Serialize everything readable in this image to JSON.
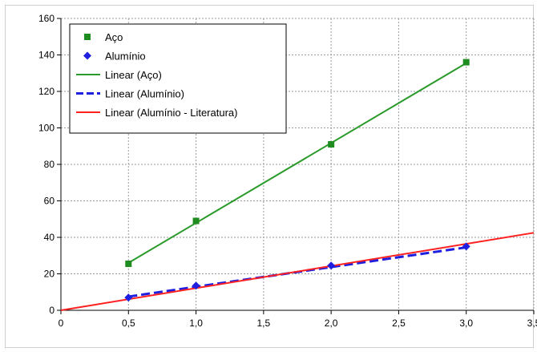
{
  "chart_data": {
    "type": "scatter",
    "xlim": [
      0,
      3.5
    ],
    "ylim": [
      0,
      160
    ],
    "x_ticks": [
      "0",
      "0,5",
      "1,0",
      "1,5",
      "2,0",
      "2,5",
      "3,0",
      "3,5"
    ],
    "x_tick_values": [
      0,
      0.5,
      1.0,
      1.5,
      2.0,
      2.5,
      3.0,
      3.5
    ],
    "y_ticks": [
      "0",
      "20",
      "40",
      "60",
      "80",
      "100",
      "120",
      "140",
      "160"
    ],
    "y_tick_values": [
      0,
      20,
      40,
      60,
      80,
      100,
      120,
      140,
      160
    ],
    "grid": true,
    "legend_position": "top-left",
    "series": [
      {
        "name": "Aço",
        "kind": "scatter",
        "marker": "square",
        "color": "#1f8c1f",
        "x": [
          0.5,
          1.0,
          2.0,
          3.0
        ],
        "y": [
          25.5,
          49,
          91,
          136
        ]
      },
      {
        "name": "Alumínio",
        "kind": "scatter",
        "marker": "diamond",
        "color": "#1f1fe0",
        "x": [
          0.5,
          1.0,
          2.0,
          3.0
        ],
        "y": [
          7,
          13.5,
          24.5,
          35
        ]
      },
      {
        "name": "Linear (Aço)",
        "kind": "line",
        "style": "solid",
        "color": "#2a9a2a",
        "x": [
          0.5,
          3.0
        ],
        "y": [
          26,
          135.5
        ]
      },
      {
        "name": "Linear (Alumínio)",
        "kind": "line",
        "style": "dashed",
        "color": "#1f1fe0",
        "x": [
          0.5,
          3.0
        ],
        "y": [
          7.5,
          34.5
        ]
      },
      {
        "name": "Linear (Alumínio - Literatura)",
        "kind": "line",
        "style": "solid",
        "color": "#ff2020",
        "x": [
          0,
          3.5
        ],
        "y": [
          0,
          42.5
        ]
      }
    ]
  }
}
